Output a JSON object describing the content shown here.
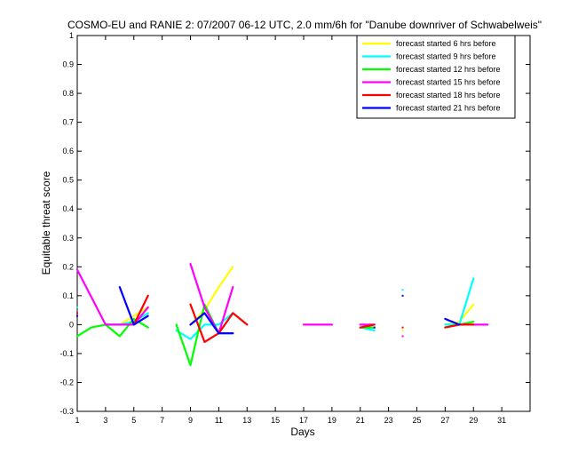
{
  "chart_data": {
    "type": "line",
    "title": "COSMO-EU and RANIE 2: 07/2007 06-12 UTC, 2.0 mm/6h for \"Danube downriver of Schwabelweis\"",
    "xlabel": "Days",
    "ylabel": "Equitable threat score",
    "xlim": [
      1,
      33
    ],
    "ylim": [
      -0.3,
      1
    ],
    "x_ticks": [
      "1",
      "3",
      "5",
      "7",
      "9",
      "11",
      "13",
      "15",
      "17",
      "19",
      "21",
      "23",
      "25",
      "27",
      "29",
      "31"
    ],
    "y_ticks": [
      "1",
      "0.9",
      "0.8",
      "0.7",
      "0.6",
      "0.5",
      "0.4",
      "0.3",
      "0.2",
      "0.1",
      "0",
      "-0.1",
      "-0.2",
      "-0.3"
    ],
    "grid": false,
    "legend_position": "top-right",
    "series": [
      {
        "name": "forecast started 6 hrs before",
        "color": "#ffff00",
        "segments": [
          [
            [
              4,
              0.0
            ],
            [
              5,
              0.03
            ],
            [
              6,
              0.06
            ]
          ],
          [
            [
              9,
              0.0
            ],
            [
              10,
              0.05
            ],
            [
              11,
              0.13
            ],
            [
              12,
              0.2
            ]
          ],
          [
            [
              21,
              -0.01
            ],
            [
              22,
              -0.01
            ]
          ],
          [
            [
              27,
              0.0
            ],
            [
              28,
              0.01
            ],
            [
              29,
              0.07
            ]
          ]
        ],
        "points": [
          [
            24,
            -0.02
          ]
        ]
      },
      {
        "name": "forecast started 9 hrs before",
        "color": "#00ffff",
        "segments": [
          [
            [
              3,
              0.0
            ],
            [
              4,
              0.0
            ],
            [
              5,
              0.01
            ],
            [
              6,
              0.04
            ]
          ],
          [
            [
              8,
              -0.02
            ],
            [
              9,
              -0.05
            ],
            [
              10,
              0.0
            ],
            [
              11,
              0.0
            ],
            [
              12,
              0.04
            ]
          ],
          [
            [
              21,
              -0.01
            ],
            [
              22,
              -0.02
            ]
          ],
          [
            [
              27,
              0.0
            ],
            [
              28,
              0.0
            ],
            [
              29,
              0.16
            ]
          ]
        ],
        "points": [
          [
            1,
            0.06
          ],
          [
            24,
            0.12
          ]
        ]
      },
      {
        "name": "forecast started 12 hrs before",
        "color": "#00ff00",
        "segments": [
          [
            [
              1,
              -0.04
            ],
            [
              2,
              -0.01
            ],
            [
              3,
              0.0
            ],
            [
              4,
              -0.04
            ],
            [
              5,
              0.02
            ],
            [
              6,
              -0.01
            ]
          ],
          [
            [
              8,
              0.0
            ],
            [
              9,
              -0.14
            ],
            [
              10,
              0.07
            ],
            [
              11,
              -0.03
            ],
            [
              12,
              -0.03
            ]
          ],
          [
            [
              21,
              -0.01
            ],
            [
              22,
              -0.01
            ]
          ],
          [
            [
              27,
              -0.01
            ],
            [
              28,
              0.0
            ],
            [
              29,
              0.01
            ]
          ]
        ],
        "points": []
      },
      {
        "name": "forecast started 15 hrs before",
        "color": "#ff00ff",
        "segments": [
          [
            [
              1,
              0.19
            ],
            [
              3,
              0.0
            ],
            [
              4,
              0.0
            ],
            [
              5,
              0.0
            ],
            [
              6,
              0.06
            ]
          ],
          [
            [
              9,
              0.21
            ],
            [
              10,
              0.06
            ],
            [
              11,
              -0.03
            ],
            [
              12,
              0.13
            ]
          ],
          [
            [
              17,
              0.0
            ],
            [
              19,
              0.0
            ]
          ],
          [
            [
              21,
              0.0
            ],
            [
              22,
              0.0
            ]
          ],
          [
            [
              28,
              0.0
            ],
            [
              29,
              0.0
            ],
            [
              30,
              0.0
            ]
          ]
        ],
        "points": [
          [
            24,
            -0.04
          ]
        ]
      },
      {
        "name": "forecast started 18 hrs before",
        "color": "#ff0000",
        "segments": [
          [
            [
              5,
              0.0
            ],
            [
              6,
              0.1
            ]
          ],
          [
            [
              9,
              0.07
            ],
            [
              10,
              -0.06
            ],
            [
              11,
              -0.03
            ],
            [
              12,
              0.04
            ],
            [
              13,
              0.0
            ]
          ],
          [
            [
              21,
              -0.01
            ],
            [
              22,
              0.0
            ]
          ],
          [
            [
              27,
              -0.01
            ],
            [
              28,
              0.0
            ],
            [
              29,
              0.0
            ]
          ]
        ],
        "points": [
          [
            1,
            0.04
          ],
          [
            24,
            -0.01
          ]
        ]
      },
      {
        "name": "forecast started 21 hrs before",
        "color": "#0000ff",
        "segments": [
          [
            [
              4,
              0.13
            ],
            [
              5,
              0.0
            ],
            [
              6,
              0.03
            ]
          ],
          [
            [
              9,
              0.0
            ],
            [
              10,
              0.04
            ],
            [
              11,
              -0.03
            ],
            [
              12,
              -0.03
            ]
          ],
          [
            [
              22,
              -0.01
            ]
          ],
          [
            [
              27,
              0.02
            ],
            [
              28,
              0.0
            ]
          ]
        ],
        "points": [
          [
            1,
            0.03
          ],
          [
            24,
            0.1
          ]
        ]
      }
    ]
  }
}
